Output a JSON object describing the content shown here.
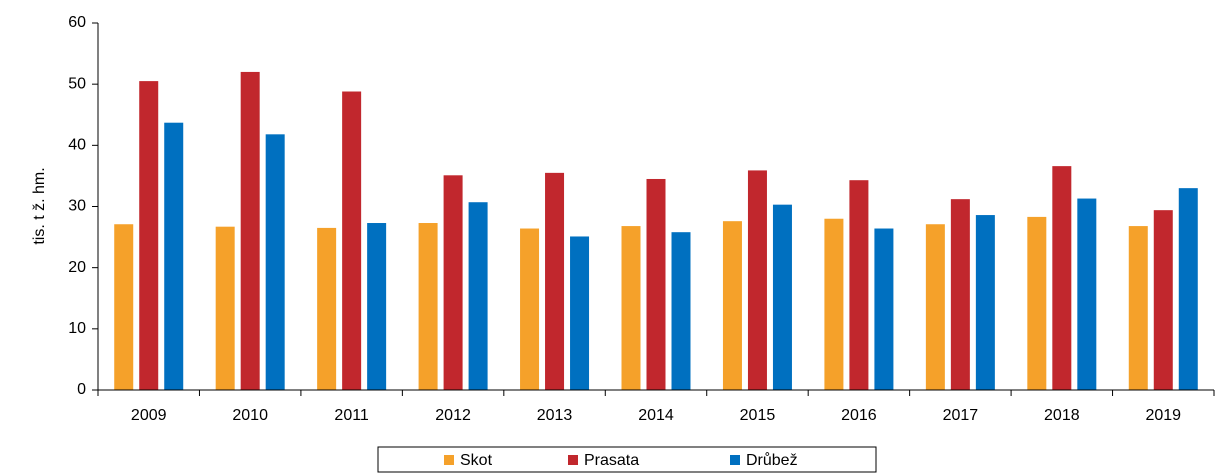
{
  "chart_data": {
    "type": "bar",
    "y_label": "tis. t ž. hm.",
    "categories": [
      "2009",
      "2010",
      "2011",
      "2012",
      "2013",
      "2014",
      "2015",
      "2016",
      "2017",
      "2018",
      "2019"
    ],
    "series": [
      {
        "name": "Skot",
        "color": "#f5a12a",
        "values": [
          27.1,
          26.7,
          26.5,
          27.3,
          26.4,
          26.8,
          27.6,
          28.0,
          27.1,
          28.3,
          26.8
        ]
      },
      {
        "name": "Prasata",
        "color": "#c1272d",
        "values": [
          50.5,
          52.0,
          48.8,
          35.1,
          35.5,
          34.5,
          35.9,
          34.3,
          31.2,
          36.6,
          29.4
        ]
      },
      {
        "name": "Drůbež",
        "color": "#0070c0",
        "values": [
          43.7,
          41.8,
          27.3,
          30.7,
          25.1,
          25.8,
          30.3,
          26.4,
          28.6,
          31.3,
          33.0
        ]
      }
    ],
    "ylim": [
      0,
      60
    ],
    "yticks": [
      0,
      10,
      20,
      30,
      40,
      50,
      60
    ],
    "grid": false,
    "legend": "bottom"
  }
}
